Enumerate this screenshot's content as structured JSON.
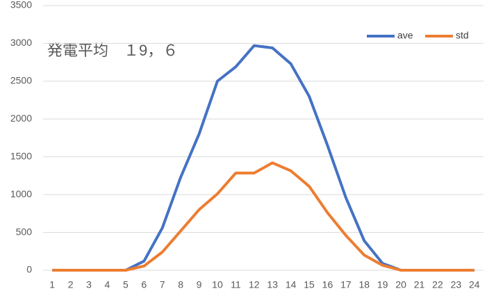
{
  "chart_data": {
    "type": "line",
    "title": "発電平均　１9，６",
    "categories": [
      "1",
      "2",
      "3",
      "4",
      "5",
      "6",
      "7",
      "8",
      "9",
      "10",
      "11",
      "12",
      "13",
      "14",
      "15",
      "16",
      "17",
      "18",
      "19",
      "20",
      "21",
      "22",
      "23",
      "24"
    ],
    "series": [
      {
        "name": "ave",
        "color": "#4472c4",
        "values": [
          0,
          0,
          0,
          0,
          0,
          120,
          560,
          1230,
          1800,
          2500,
          2690,
          2970,
          2940,
          2730,
          2300,
          1650,
          960,
          390,
          90,
          0,
          0,
          0,
          0,
          0
        ]
      },
      {
        "name": "std",
        "color": "#ed7d31",
        "values": [
          0,
          0,
          0,
          0,
          0,
          55,
          240,
          520,
          800,
          1010,
          1285,
          1285,
          1420,
          1315,
          1110,
          760,
          460,
          200,
          65,
          0,
          0,
          0,
          0,
          0
        ]
      }
    ],
    "ylim": [
      0,
      3500
    ],
    "yticks": [
      0,
      500,
      1000,
      1500,
      2000,
      2500,
      3000,
      3500
    ],
    "grid": true,
    "legend": "top-right"
  }
}
